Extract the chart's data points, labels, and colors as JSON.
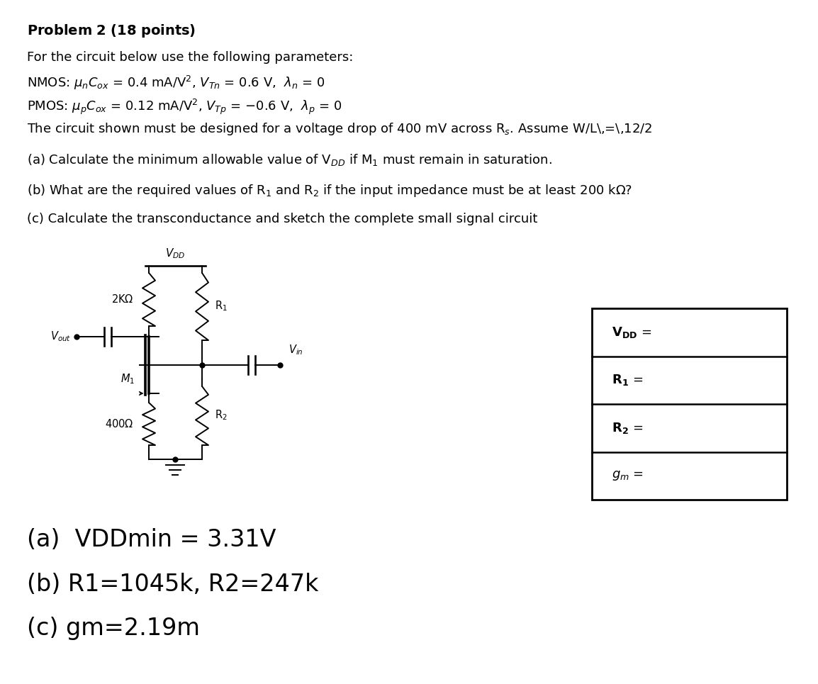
{
  "background_color": "#ffffff",
  "title": "Problem 2 (18 points)",
  "line1": "For the circuit below use the following parameters:",
  "line2_nmos": "NMOS: $\\mu_n C_{ox}$ = 0.4 mA/V$^2$, $V_{Tn}$ = 0.6 V,  $\\lambda_n$ = 0",
  "line3_pmos": "PMOS: $\\mu_p C_{ox}$ = 0.12 mA/V$^2$, $V_{Tp}$ = $-$0.6 V,  $\\lambda_p$ = 0",
  "line4": "The circuit shown must be designed for a voltage drop of 400 mV across R$_s$. Assume W/L\\,=\\,12/2",
  "line_a": "(a) Calculate the minimum allowable value of V$_{DD}$ if M$_1$ must remain in saturation.",
  "line_b": "(b) What are the required values of R$_1$ and R$_2$ if the input impedance must be at least 200 k$\\Omega$?",
  "line_c": "(c) Calculate the transconductance and sketch the complete small signal circuit",
  "ans_a": "(a)  VDDmin = 3.31V",
  "ans_b": "(b) R1=1045k, R2=247k",
  "ans_c": "(c) gm=2.19m",
  "tbl_row1": "$\\mathbf{V_{DD}}$ =",
  "tbl_row2": "$\\mathbf{R_1}$ =",
  "tbl_row3": "$\\mathbf{R_2}$ =",
  "tbl_row4": "$g_m$ ="
}
